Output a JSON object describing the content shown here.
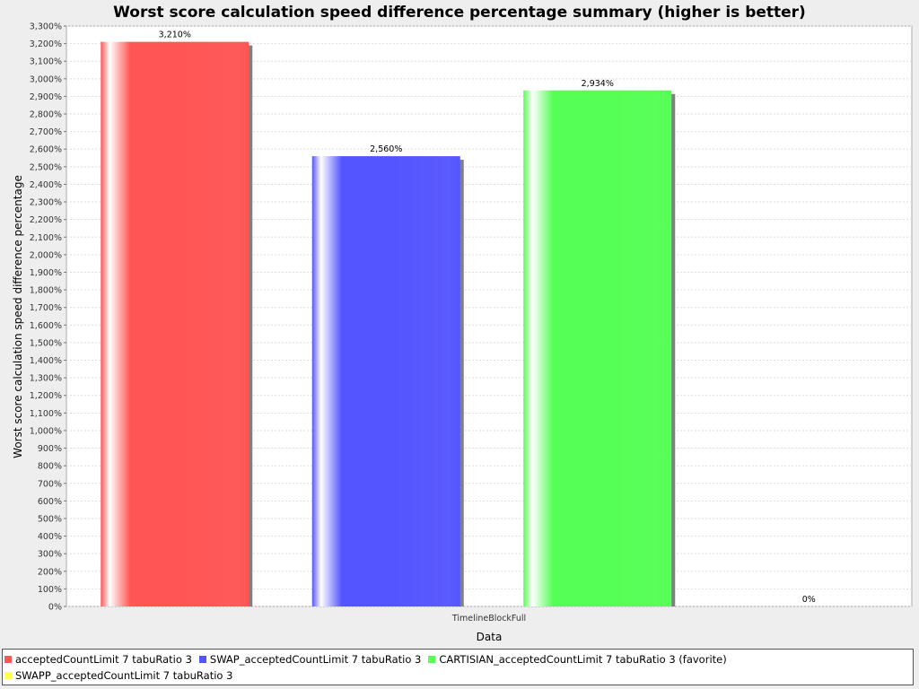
{
  "chart_data": {
    "type": "bar",
    "title": "Worst score calculation speed difference percentage summary (higher is better)",
    "xlabel": "Data",
    "ylabel": "Worst score calculation speed difference percentage",
    "categories": [
      "TimelineBlockFull"
    ],
    "ylim": [
      0,
      3300
    ],
    "ytick_step": 100,
    "grid": true,
    "legend_position": "bottom",
    "series": [
      {
        "name": "acceptedCountLimit 7 tabuRatio 3",
        "values": [
          3210
        ],
        "label": "3,210%",
        "color": "#ff5555"
      },
      {
        "name": "SWAP_acceptedCountLimit 7 tabuRatio 3",
        "values": [
          2560
        ],
        "label": "2,560%",
        "color": "#5555ff"
      },
      {
        "name": "CARTISIAN_acceptedCountLimit 7 tabuRatio 3 (favorite)",
        "values": [
          2934
        ],
        "label": "2,934%",
        "color": "#55ff55"
      },
      {
        "name": "SWAPP_acceptedCountLimit 7 tabuRatio 3",
        "values": [
          0
        ],
        "label": "0%",
        "color": "#ffff55"
      }
    ]
  }
}
